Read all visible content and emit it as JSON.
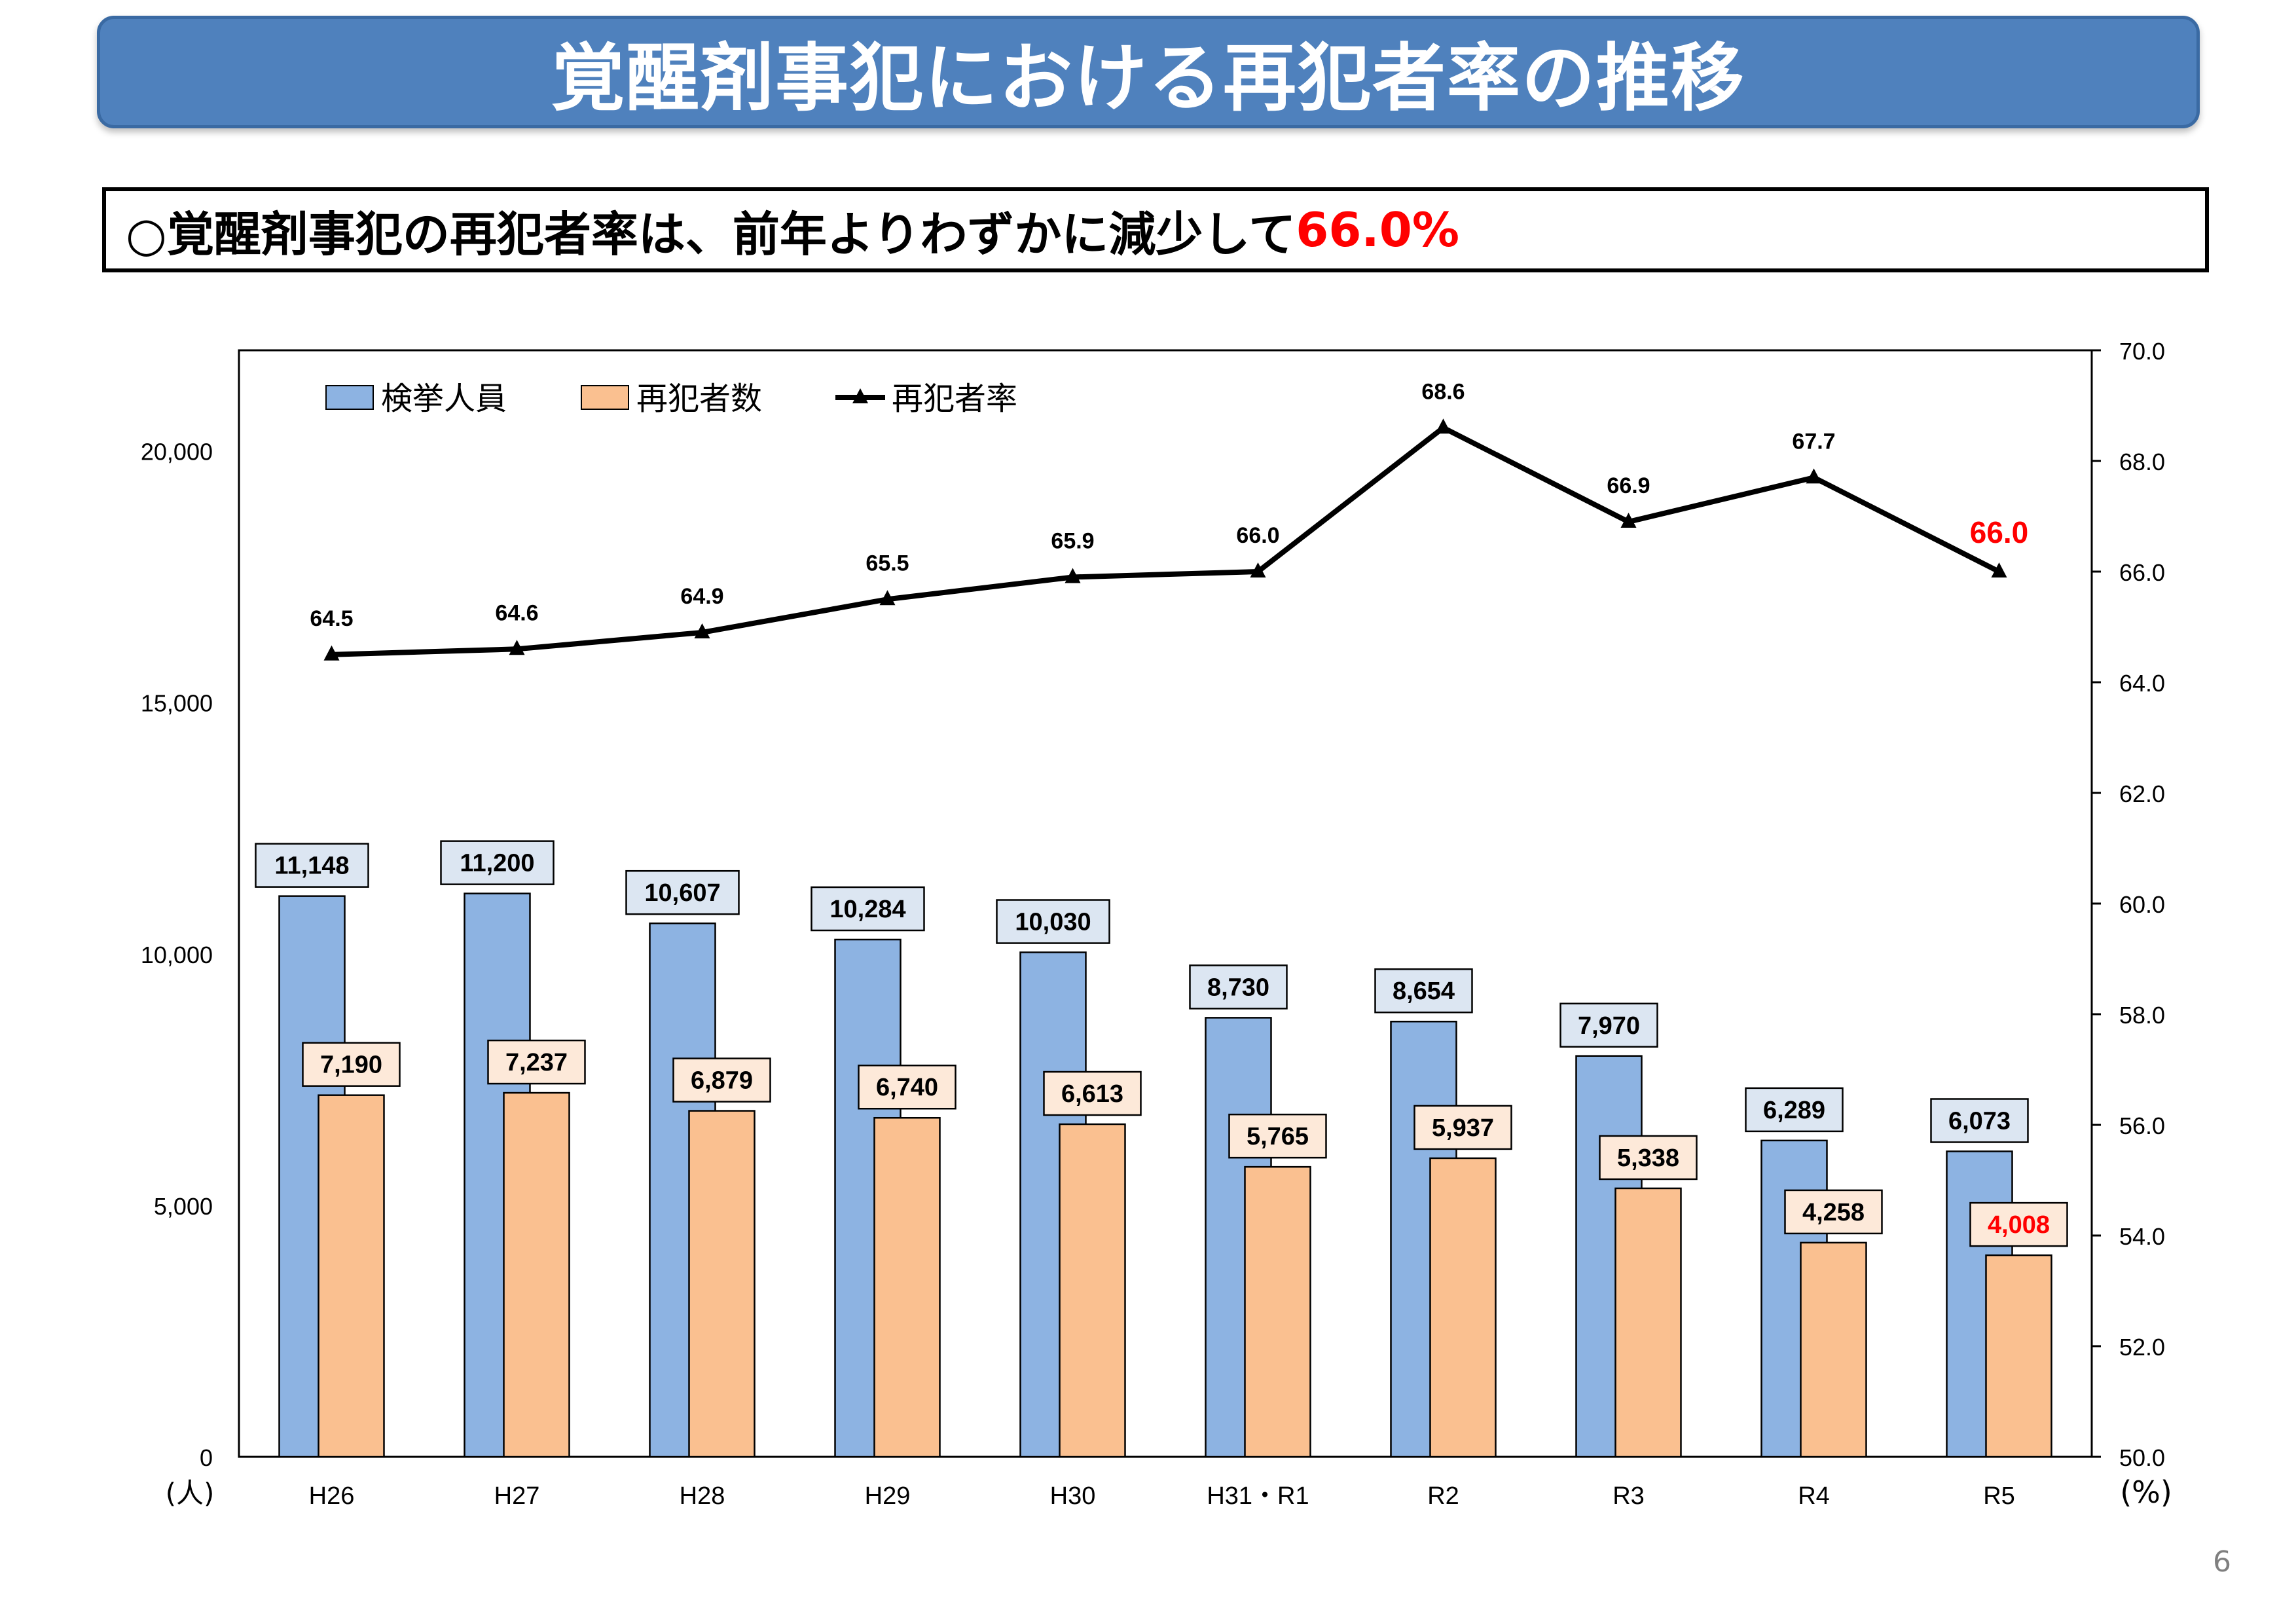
{
  "header": {
    "title": "覚醒剤事犯における再犯者率の推移"
  },
  "summary": {
    "prefix": "○覚醒剤事犯の再犯者率は、前年よりわずかに減少して",
    "highlight": "66.0%"
  },
  "page_number": "6",
  "colors": {
    "title_bg": "#4f81bd",
    "arrests_bar": "#8db3e2",
    "arrests_label_bg": "#dce6f2",
    "recidivists_bar": "#fac090",
    "recidivists_label_bg": "#fde9d9",
    "rate_line": "#000000",
    "highlight": "#ff0000"
  },
  "chart_data": {
    "type": "bar+line",
    "categories": [
      "H26",
      "H27",
      "H28",
      "H29",
      "H30",
      "H31・R1",
      "R2",
      "R3",
      "R4",
      "R5"
    ],
    "series": [
      {
        "name": "検挙人員",
        "type": "bar",
        "axis": "left",
        "values": [
          11148,
          11200,
          10607,
          10284,
          10030,
          8730,
          8654,
          7970,
          6289,
          6073
        ],
        "labels": [
          "11,148",
          "11,200",
          "10,607",
          "10,284",
          "10,030",
          "8,730",
          "8,654",
          "7,970",
          "6,289",
          "6,073"
        ]
      },
      {
        "name": "再犯者数",
        "type": "bar",
        "axis": "left",
        "values": [
          7190,
          7237,
          6879,
          6740,
          6613,
          5765,
          5937,
          5338,
          4258,
          4008
        ],
        "labels": [
          "7,190",
          "7,237",
          "6,879",
          "6,740",
          "6,613",
          "5,765",
          "5,937",
          "5,338",
          "4,258",
          "4,008"
        ]
      },
      {
        "name": "再犯者率",
        "type": "line",
        "axis": "right",
        "values": [
          64.5,
          64.6,
          64.9,
          65.5,
          65.9,
          66.0,
          68.6,
          66.9,
          67.7,
          66.0
        ],
        "labels": [
          "64.5",
          "64.6",
          "64.9",
          "65.5",
          "65.9",
          "66.0",
          "68.6",
          "66.9",
          "67.7",
          "66.0"
        ]
      }
    ],
    "left_axis": {
      "min": 0,
      "max": 22000,
      "ticks": [
        0,
        5000,
        10000,
        15000,
        20000
      ],
      "tick_labels": [
        "0",
        "5,000",
        "10,000",
        "15,000",
        "20,000"
      ],
      "unit": "(人)"
    },
    "right_axis": {
      "min": 50,
      "max": 70,
      "ticks": [
        50,
        52,
        54,
        56,
        58,
        60,
        62,
        64,
        66,
        68,
        70
      ],
      "tick_labels": [
        "50.0",
        "52.0",
        "54.0",
        "56.0",
        "58.0",
        "60.0",
        "62.0",
        "64.0",
        "66.0",
        "68.0",
        "70.0"
      ],
      "unit": "(%)"
    },
    "legend_position": "top-left",
    "grid": false
  }
}
